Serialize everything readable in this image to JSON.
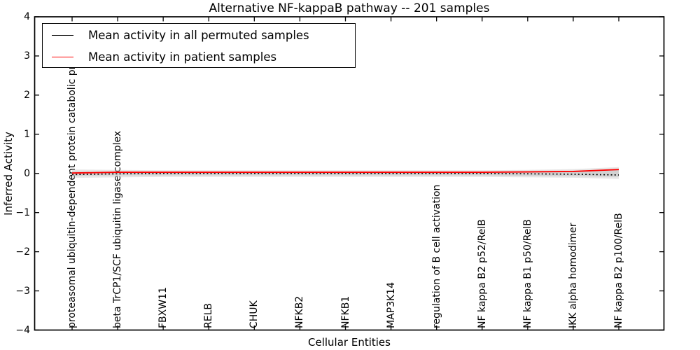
{
  "chart_data": {
    "type": "line",
    "title": "Alternative NF-kappaB pathway -- 201 samples",
    "xlabel": "Cellular Entities",
    "ylabel": "Inferred Activity",
    "ylim": [
      -4,
      4
    ],
    "yticks": [
      4,
      3,
      2,
      1,
      0,
      -1,
      -2,
      -3,
      -4
    ],
    "grid": false,
    "legend_position": "upper left",
    "categories": [
      "proteasomal ubiquitin-dependent protein catabolic process",
      "beta TrCP1/SCF ubiquitin ligase complex",
      "FBXW11",
      "RELB",
      "CHUK",
      "NFKB2",
      "NFKB1",
      "MAP3K14",
      "regulation of B cell activation",
      "NF kappa B2 p52/RelB",
      "NF kappa B1 p50/RelB",
      "IKK alpha homodimer",
      "NF kappa B2 p100/RelB"
    ],
    "series": [
      {
        "name": "Mean activity in all permuted samples",
        "color": "#000000",
        "style": "dotted",
        "width": 1.6,
        "values": [
          -0.03,
          -0.01,
          0,
          0,
          0,
          0,
          0,
          0,
          0,
          0,
          -0.01,
          -0.02,
          -0.04
        ]
      },
      {
        "name": "Mean activity in patient samples",
        "color": "#ff0000",
        "style": "solid",
        "width": 1.9,
        "values": [
          0.01,
          0.03,
          0.03,
          0.03,
          0.03,
          0.03,
          0.03,
          0.03,
          0.03,
          0.03,
          0.04,
          0.05,
          0.1
        ]
      }
    ],
    "bands": [
      {
        "name": "shaded-band-outer",
        "color": "#c8c8c8",
        "opacity": 0.45,
        "upper": [
          0.1,
          0.09,
          0.08,
          0.08,
          0.08,
          0.08,
          0.08,
          0.08,
          0.08,
          0.08,
          0.09,
          0.11,
          0.16
        ],
        "lower": [
          -0.11,
          -0.1,
          -0.09,
          -0.09,
          -0.09,
          -0.09,
          -0.09,
          -0.09,
          -0.09,
          -0.09,
          -0.1,
          -0.11,
          -0.14
        ]
      },
      {
        "name": "shaded-band-inner",
        "color": "#bdbdbd",
        "opacity": 0.5,
        "upper": [
          0.05,
          0.05,
          0.04,
          0.04,
          0.04,
          0.04,
          0.04,
          0.04,
          0.04,
          0.04,
          0.05,
          0.06,
          0.1
        ],
        "lower": [
          -0.06,
          -0.05,
          -0.05,
          -0.05,
          -0.05,
          -0.05,
          -0.05,
          -0.05,
          -0.05,
          -0.05,
          -0.06,
          -0.07,
          -0.09
        ]
      }
    ]
  }
}
